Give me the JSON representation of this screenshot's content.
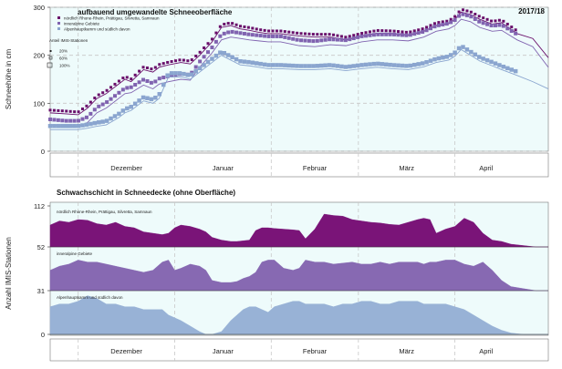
{
  "chart_data": [
    {
      "type": "line",
      "title": "aufbauend umgewandelte Schneeoberfläche",
      "season": "2017/18",
      "ylabel": "Schneehöhe in cm",
      "ylim": [
        0,
        300
      ],
      "yticks": [
        0,
        100,
        200,
        300
      ],
      "months": [
        "Dezember",
        "Januar",
        "Februar",
        "März",
        "April"
      ],
      "x_unit": "days since 22 Nov 2017",
      "xlim": [
        0,
        160
      ],
      "legend": {
        "items": [
          {
            "label": "nördlich Rhone-Rhein, Prättigau, Silvretta, Samnaun",
            "color": "#6a0f6b"
          },
          {
            "label": "inneralpine Gebiete",
            "color": "#8063b0"
          },
          {
            "label": "Alpenhauptkamm und südlich davon",
            "color": "#8aa5cf"
          }
        ],
        "station_share_title": "Anteil IMIS-Stationen",
        "station_share_labels": [
          "20%",
          "60%",
          "100%"
        ]
      },
      "series": [
        {
          "name": "nördlich Rhone-Rhein, Prättigau, Silvretta, Samnaun",
          "color": "#6a0f6b",
          "x": [
            0,
            5,
            9,
            12,
            15,
            18,
            22,
            24,
            26,
            30,
            33,
            35,
            38,
            42,
            45,
            48,
            52,
            55,
            58,
            61,
            64,
            67,
            70,
            74,
            80,
            85,
            90,
            95,
            100,
            105,
            110,
            115,
            120,
            124,
            128,
            130,
            132,
            135,
            138,
            142,
            145,
            150,
            155,
            160
          ],
          "y": [
            80,
            78,
            76,
            90,
            110,
            120,
            140,
            150,
            145,
            170,
            165,
            175,
            180,
            185,
            182,
            200,
            228,
            258,
            262,
            255,
            252,
            248,
            245,
            245,
            240,
            238,
            238,
            232,
            240,
            246,
            245,
            242,
            250,
            262,
            266,
            275,
            290,
            285,
            275,
            265,
            268,
            245,
            235,
            195
          ]
        },
        {
          "name": "inneralpine Gebiete",
          "color": "#8063b0",
          "x": [
            0,
            5,
            9,
            12,
            15,
            18,
            22,
            24,
            26,
            30,
            33,
            35,
            38,
            42,
            45,
            48,
            52,
            55,
            58,
            61,
            64,
            67,
            70,
            74,
            80,
            85,
            90,
            95,
            100,
            105,
            110,
            115,
            120,
            124,
            128,
            130,
            132,
            135,
            138,
            142,
            145,
            150,
            155,
            160
          ],
          "y": [
            55,
            52,
            52,
            60,
            80,
            90,
            110,
            120,
            122,
            138,
            130,
            140,
            145,
            150,
            148,
            175,
            205,
            232,
            238,
            235,
            232,
            230,
            228,
            228,
            220,
            218,
            222,
            220,
            228,
            232,
            232,
            230,
            238,
            250,
            255,
            262,
            275,
            270,
            258,
            250,
            252,
            232,
            218,
            175
          ]
        },
        {
          "name": "Alpenhauptkamm und südlich davon",
          "color": "#8aa5cf",
          "x": [
            0,
            5,
            9,
            12,
            15,
            18,
            22,
            24,
            26,
            30,
            33,
            35,
            38,
            42,
            45,
            48,
            52,
            55,
            58,
            61,
            64,
            67,
            70,
            74,
            80,
            85,
            90,
            95,
            100,
            105,
            110,
            115,
            120,
            124,
            128,
            130,
            132,
            135,
            138,
            142,
            145,
            150,
            155,
            160
          ],
          "y": [
            45,
            45,
            45,
            48,
            52,
            55,
            70,
            80,
            85,
            105,
            100,
            110,
            155,
            155,
            150,
            165,
            185,
            200,
            190,
            180,
            178,
            175,
            172,
            172,
            170,
            170,
            172,
            168,
            172,
            175,
            172,
            170,
            176,
            185,
            190,
            198,
            212,
            200,
            188,
            178,
            170,
            158,
            145,
            130
          ]
        }
      ]
    },
    {
      "type": "area",
      "title": "Schwachschicht in Schneedecke (ohne Oberfläche)",
      "ylabel": "Anzahl IMIS-Stationen",
      "yticks": [
        0,
        31,
        52,
        112
      ],
      "months": [
        "Dezember",
        "Januar",
        "Februar",
        "März",
        "April"
      ],
      "xlim": [
        0,
        160
      ],
      "panels": [
        {
          "name": "nördlich Rhone-Rhein, Prättigau, Silvretta, Samnaun",
          "color": "#7a1478",
          "ymax": 60,
          "x": [
            0,
            3,
            6,
            9,
            12,
            15,
            18,
            21,
            24,
            27,
            30,
            33,
            36,
            38,
            40,
            42,
            45,
            48,
            50,
            52,
            55,
            58,
            60,
            62,
            64,
            66,
            68,
            70,
            72,
            75,
            78,
            80,
            82,
            85,
            88,
            91,
            94,
            97,
            100,
            103,
            106,
            109,
            112,
            115,
            118,
            120,
            122,
            124,
            127,
            130,
            133,
            136,
            139,
            142,
            145,
            148,
            152,
            156,
            160
          ],
          "y": [
            32,
            38,
            36,
            40,
            39,
            34,
            32,
            36,
            30,
            28,
            22,
            20,
            18,
            20,
            28,
            32,
            30,
            26,
            22,
            14,
            10,
            8,
            8,
            9,
            10,
            24,
            28,
            28,
            27,
            26,
            25,
            24,
            12,
            26,
            48,
            46,
            45,
            40,
            38,
            36,
            35,
            33,
            32,
            36,
            40,
            42,
            40,
            20,
            26,
            30,
            42,
            36,
            20,
            10,
            8,
            4,
            2,
            0,
            0
          ]
        },
        {
          "name": "inneralpine Gebiete",
          "color": "#8769b2",
          "ymax": 42,
          "x": [
            0,
            3,
            6,
            9,
            12,
            15,
            18,
            21,
            24,
            27,
            30,
            33,
            36,
            38,
            40,
            42,
            45,
            48,
            50,
            52,
            55,
            58,
            60,
            62,
            64,
            66,
            68,
            70,
            72,
            75,
            78,
            80,
            82,
            85,
            88,
            91,
            94,
            97,
            100,
            103,
            106,
            109,
            112,
            115,
            118,
            120,
            122,
            124,
            127,
            130,
            133,
            136,
            139,
            142,
            145,
            148,
            152,
            156,
            160
          ],
          "y": [
            20,
            24,
            26,
            30,
            28,
            28,
            26,
            24,
            22,
            20,
            18,
            20,
            28,
            30,
            20,
            22,
            26,
            24,
            20,
            10,
            8,
            8,
            9,
            12,
            14,
            18,
            28,
            30,
            30,
            22,
            20,
            22,
            30,
            28,
            28,
            26,
            27,
            28,
            26,
            26,
            28,
            26,
            28,
            28,
            28,
            26,
            28,
            28,
            30,
            30,
            26,
            24,
            28,
            20,
            10,
            4,
            2,
            0,
            0
          ]
        },
        {
          "name": "Alpenhauptkamm und südlich davon",
          "color": "#98b2d6",
          "ymax": 31,
          "x": [
            0,
            3,
            6,
            9,
            12,
            15,
            18,
            21,
            24,
            27,
            30,
            33,
            36,
            38,
            40,
            42,
            45,
            48,
            50,
            52,
            55,
            58,
            60,
            62,
            64,
            66,
            68,
            70,
            72,
            75,
            78,
            80,
            82,
            85,
            88,
            91,
            94,
            97,
            100,
            103,
            106,
            109,
            112,
            115,
            118,
            120,
            122,
            124,
            127,
            130,
            133,
            136,
            139,
            142,
            145,
            148,
            152,
            156,
            160
          ],
          "y": [
            20,
            22,
            22,
            24,
            28,
            26,
            22,
            22,
            20,
            20,
            18,
            18,
            18,
            14,
            12,
            10,
            6,
            2,
            0,
            0,
            2,
            10,
            14,
            18,
            20,
            20,
            18,
            16,
            20,
            22,
            24,
            24,
            22,
            22,
            22,
            20,
            22,
            22,
            24,
            24,
            22,
            22,
            24,
            24,
            24,
            22,
            22,
            22,
            22,
            20,
            18,
            14,
            10,
            6,
            3,
            1,
            0,
            0,
            0
          ]
        }
      ]
    }
  ]
}
